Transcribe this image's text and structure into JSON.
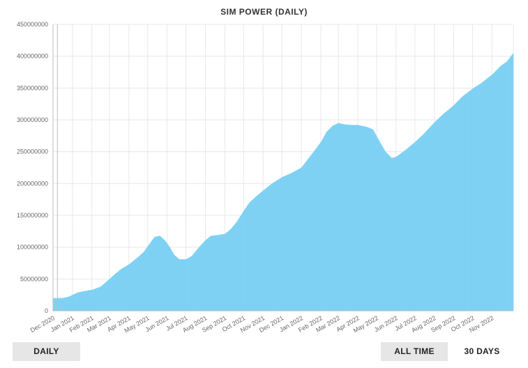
{
  "title": "SIM POWER (DAILY)",
  "colors": {
    "bar": "#7fd1f3",
    "grid": "#e8e8e8",
    "axis": "#bdbdbd",
    "button_bg": "#e6e6e6"
  },
  "buttons": {
    "daily": "DAILY",
    "all_time": "ALL TIME",
    "thirty_days": "30 DAYS"
  },
  "chart_data": {
    "type": "bar",
    "title": "SIM POWER (DAILY)",
    "xlabel": "",
    "ylabel": "",
    "ylim": [
      0,
      450000000
    ],
    "yticks": [
      0,
      50000000,
      100000000,
      150000000,
      200000000,
      250000000,
      300000000,
      350000000,
      400000000,
      450000000
    ],
    "xticks": [
      "Dec 2020",
      "Jan 2021",
      "Feb 2021",
      "Mar 2021",
      "Apr 2021",
      "May 2021",
      "Jun 2021",
      "Jul 2021",
      "Aug 2021",
      "Sep 2021",
      "Oct 2021",
      "Nov 2021",
      "Dec 2021",
      "Jan 2022",
      "Feb 2022",
      "Mar 2022",
      "Apr 2022",
      "May 2022",
      "Jun 2022",
      "Jul 2022",
      "Aug 2022",
      "Sep 2022",
      "Oct 2022",
      "Nov 2022"
    ],
    "grid": true,
    "series": [
      {
        "points": [
          [
            "2020-12-01",
            20000000
          ],
          [
            "2020-12-15",
            20000000
          ],
          [
            "2020-12-25",
            22000000
          ],
          [
            "2021-01-01",
            25000000
          ],
          [
            "2021-01-10",
            29000000
          ],
          [
            "2021-01-20",
            31000000
          ],
          [
            "2021-02-01",
            33000000
          ],
          [
            "2021-02-15",
            38000000
          ],
          [
            "2021-03-01",
            50000000
          ],
          [
            "2021-03-10",
            58000000
          ],
          [
            "2021-03-20",
            66000000
          ],
          [
            "2021-04-01",
            73000000
          ],
          [
            "2021-04-15",
            84000000
          ],
          [
            "2021-04-25",
            93000000
          ],
          [
            "2021-05-05",
            107000000
          ],
          [
            "2021-05-12",
            116000000
          ],
          [
            "2021-05-20",
            118000000
          ],
          [
            "2021-05-28",
            111000000
          ],
          [
            "2021-06-05",
            100000000
          ],
          [
            "2021-06-12",
            88000000
          ],
          [
            "2021-06-20",
            81000000
          ],
          [
            "2021-07-01",
            81000000
          ],
          [
            "2021-07-10",
            86000000
          ],
          [
            "2021-07-20",
            98000000
          ],
          [
            "2021-08-01",
            111000000
          ],
          [
            "2021-08-10",
            118000000
          ],
          [
            "2021-08-20",
            119000000
          ],
          [
            "2021-09-01",
            121000000
          ],
          [
            "2021-09-10",
            128000000
          ],
          [
            "2021-09-20",
            140000000
          ],
          [
            "2021-10-01",
            157000000
          ],
          [
            "2021-10-10",
            170000000
          ],
          [
            "2021-10-20",
            179000000
          ],
          [
            "2021-11-01",
            189000000
          ],
          [
            "2021-11-15",
            200000000
          ],
          [
            "2021-12-01",
            210000000
          ],
          [
            "2021-12-15",
            216000000
          ],
          [
            "2022-01-01",
            225000000
          ],
          [
            "2022-01-15",
            243000000
          ],
          [
            "2022-02-01",
            265000000
          ],
          [
            "2022-02-10",
            281000000
          ],
          [
            "2022-02-20",
            291000000
          ],
          [
            "2022-03-01",
            295000000
          ],
          [
            "2022-03-10",
            293000000
          ],
          [
            "2022-03-20",
            292000000
          ],
          [
            "2022-04-01",
            292000000
          ],
          [
            "2022-04-15",
            289000000
          ],
          [
            "2022-04-25",
            285000000
          ],
          [
            "2022-05-05",
            267000000
          ],
          [
            "2022-05-15",
            250000000
          ],
          [
            "2022-05-25",
            240000000
          ],
          [
            "2022-06-01",
            242000000
          ],
          [
            "2022-06-15",
            252000000
          ],
          [
            "2022-07-01",
            265000000
          ],
          [
            "2022-07-15",
            278000000
          ],
          [
            "2022-08-01",
            296000000
          ],
          [
            "2022-08-15",
            309000000
          ],
          [
            "2022-09-01",
            323000000
          ],
          [
            "2022-09-15",
            337000000
          ],
          [
            "2022-10-01",
            349000000
          ],
          [
            "2022-10-15",
            358000000
          ],
          [
            "2022-11-01",
            371000000
          ],
          [
            "2022-11-15",
            385000000
          ],
          [
            "2022-11-25",
            392000000
          ],
          [
            "2022-12-01",
            400000000
          ],
          [
            "2022-12-05",
            405000000
          ]
        ]
      }
    ]
  }
}
